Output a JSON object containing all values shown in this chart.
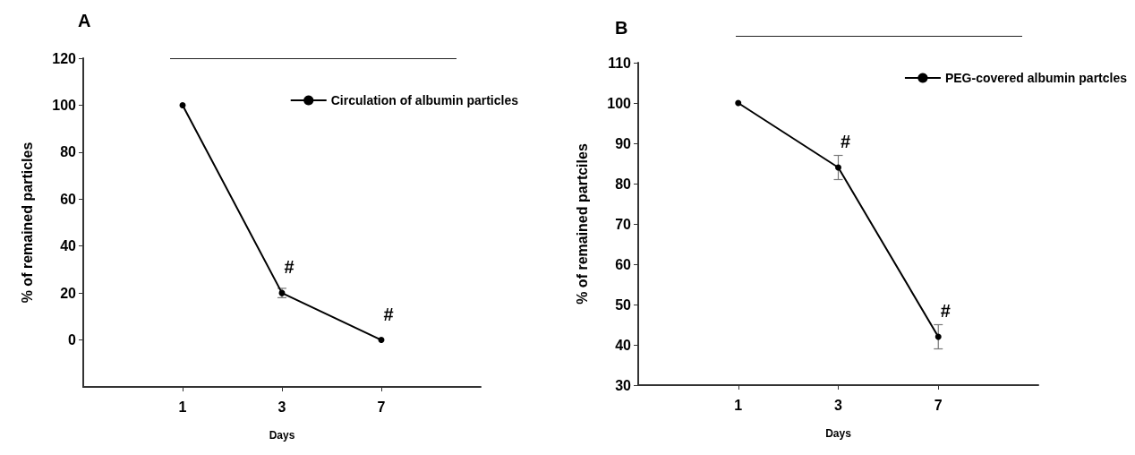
{
  "chart_data": [
    {
      "type": "line",
      "title": "A",
      "xlabel": "Days",
      "ylabel": "% of remained particles",
      "categories": [
        null,
        "1",
        "3",
        "7",
        null
      ],
      "series": [
        {
          "name": "Circulation of albumin particles",
          "color": "#000000",
          "values": [
            null,
            100,
            20,
            0,
            null
          ],
          "errors": [
            null,
            null,
            2,
            null,
            null
          ]
        }
      ],
      "ylim": [
        -20,
        120
      ],
      "yticks": [
        0,
        20,
        40,
        60,
        80,
        100,
        120
      ],
      "grid": false,
      "legend": "top right",
      "marker": "circle",
      "line_style": "solid",
      "annotations": [
        {
          "text": "#",
          "x": "3",
          "y": 20
        },
        {
          "text": "#",
          "x": "7",
          "y": 0
        }
      ]
    },
    {
      "type": "line",
      "title": "B",
      "xlabel": "Days",
      "ylabel": "% of remained partciles",
      "categories": [
        null,
        "1",
        "3",
        "7",
        null
      ],
      "series": [
        {
          "name": "PEG-covered albumin partcles",
          "color": "#000000",
          "values": [
            null,
            100,
            84,
            42,
            null
          ],
          "errors": [
            null,
            null,
            3,
            3,
            null
          ]
        }
      ],
      "ylim": [
        30,
        110
      ],
      "yticks": [
        30,
        40,
        50,
        60,
        70,
        80,
        90,
        100,
        110
      ],
      "grid": false,
      "legend": "top right",
      "marker": "circle",
      "line_style": "solid",
      "annotations": [
        {
          "text": "#",
          "x": "3",
          "y": 84
        },
        {
          "text": "#",
          "x": "7",
          "y": 42
        }
      ]
    }
  ]
}
